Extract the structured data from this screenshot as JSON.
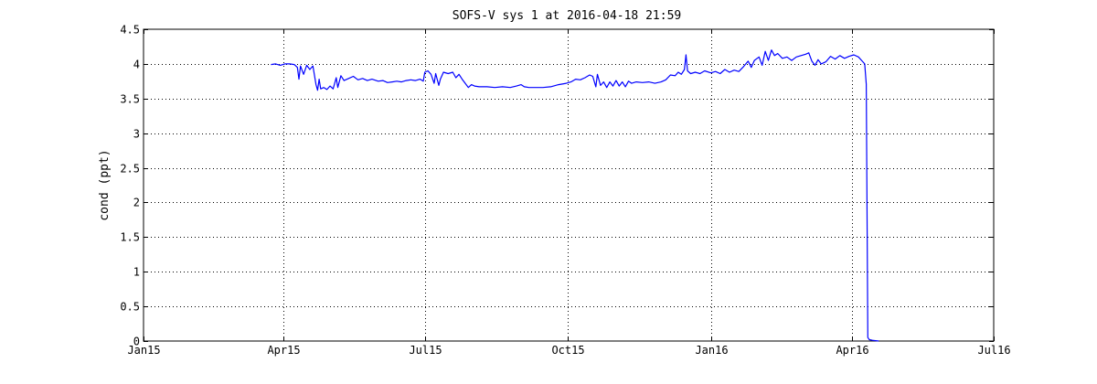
{
  "chart_data": {
    "type": "line",
    "title": "SOFS-V sys 1 at 2016-04-18 21:59",
    "xlabel": "",
    "ylabel": "cond (ppt)",
    "xlim": [
      "2015-01-01",
      "2016-07-01"
    ],
    "ylim": [
      0,
      4.5
    ],
    "x_ticks": [
      {
        "date": "2015-01-01",
        "label": "Jan15"
      },
      {
        "date": "2015-04-01",
        "label": "Apr15"
      },
      {
        "date": "2015-07-01",
        "label": "Jul15"
      },
      {
        "date": "2015-10-01",
        "label": "Oct15"
      },
      {
        "date": "2016-01-01",
        "label": "Jan16"
      },
      {
        "date": "2016-04-01",
        "label": "Apr16"
      },
      {
        "date": "2016-07-01",
        "label": "Jul16"
      }
    ],
    "y_ticks": [
      {
        "value": 0,
        "label": "0"
      },
      {
        "value": 0.5,
        "label": "0.5"
      },
      {
        "value": 1,
        "label": "1"
      },
      {
        "value": 1.5,
        "label": "1.5"
      },
      {
        "value": 2,
        "label": "2"
      },
      {
        "value": 2.5,
        "label": "2.5"
      },
      {
        "value": 3,
        "label": "3"
      },
      {
        "value": 3.5,
        "label": "3.5"
      },
      {
        "value": 4,
        "label": "4"
      },
      {
        "value": 4.5,
        "label": "4.5"
      }
    ],
    "grid": true,
    "grid_style": "dotted",
    "legend": "none",
    "series": [
      {
        "color": "#0000ff",
        "points": [
          [
            "2015-03-24",
            3.99
          ],
          [
            "2015-03-27",
            4.0
          ],
          [
            "2015-03-30",
            3.98
          ],
          [
            "2015-04-02",
            4.0
          ],
          [
            "2015-04-05",
            4.0
          ],
          [
            "2015-04-08",
            3.99
          ],
          [
            "2015-04-10",
            3.95
          ],
          [
            "2015-04-11",
            3.78
          ],
          [
            "2015-04-12",
            3.97
          ],
          [
            "2015-04-14",
            3.85
          ],
          [
            "2015-04-16",
            3.98
          ],
          [
            "2015-04-18",
            3.92
          ],
          [
            "2015-04-20",
            3.97
          ],
          [
            "2015-04-22",
            3.7
          ],
          [
            "2015-04-23",
            3.62
          ],
          [
            "2015-04-24",
            3.78
          ],
          [
            "2015-04-25",
            3.64
          ],
          [
            "2015-04-27",
            3.66
          ],
          [
            "2015-04-29",
            3.63
          ],
          [
            "2015-05-01",
            3.68
          ],
          [
            "2015-05-03",
            3.64
          ],
          [
            "2015-05-05",
            3.8
          ],
          [
            "2015-05-06",
            3.66
          ],
          [
            "2015-05-08",
            3.83
          ],
          [
            "2015-05-10",
            3.76
          ],
          [
            "2015-05-13",
            3.79
          ],
          [
            "2015-05-16",
            3.82
          ],
          [
            "2015-05-19",
            3.77
          ],
          [
            "2015-05-22",
            3.79
          ],
          [
            "2015-05-25",
            3.76
          ],
          [
            "2015-05-28",
            3.78
          ],
          [
            "2015-06-01",
            3.75
          ],
          [
            "2015-06-04",
            3.76
          ],
          [
            "2015-06-07",
            3.73
          ],
          [
            "2015-06-10",
            3.74
          ],
          [
            "2015-06-13",
            3.75
          ],
          [
            "2015-06-16",
            3.74
          ],
          [
            "2015-06-19",
            3.76
          ],
          [
            "2015-06-22",
            3.77
          ],
          [
            "2015-06-25",
            3.76
          ],
          [
            "2015-06-28",
            3.78
          ],
          [
            "2015-06-30",
            3.75
          ],
          [
            "2015-07-01",
            3.88
          ],
          [
            "2015-07-03",
            3.9
          ],
          [
            "2015-07-05",
            3.85
          ],
          [
            "2015-07-07",
            3.72
          ],
          [
            "2015-07-08",
            3.86
          ],
          [
            "2015-07-10",
            3.69
          ],
          [
            "2015-07-11",
            3.78
          ],
          [
            "2015-07-13",
            3.88
          ],
          [
            "2015-07-16",
            3.86
          ],
          [
            "2015-07-19",
            3.88
          ],
          [
            "2015-07-21",
            3.8
          ],
          [
            "2015-07-23",
            3.85
          ],
          [
            "2015-07-25",
            3.78
          ],
          [
            "2015-07-27",
            3.72
          ],
          [
            "2015-07-29",
            3.66
          ],
          [
            "2015-07-31",
            3.7
          ],
          [
            "2015-08-02",
            3.68
          ],
          [
            "2015-08-05",
            3.67
          ],
          [
            "2015-08-10",
            3.67
          ],
          [
            "2015-08-15",
            3.66
          ],
          [
            "2015-08-20",
            3.67
          ],
          [
            "2015-08-25",
            3.66
          ],
          [
            "2015-08-29",
            3.68
          ],
          [
            "2015-09-01",
            3.7
          ],
          [
            "2015-09-03",
            3.67
          ],
          [
            "2015-09-06",
            3.66
          ],
          [
            "2015-09-10",
            3.66
          ],
          [
            "2015-09-15",
            3.66
          ],
          [
            "2015-09-20",
            3.67
          ],
          [
            "2015-09-25",
            3.7
          ],
          [
            "2015-09-30",
            3.72
          ],
          [
            "2015-10-03",
            3.74
          ],
          [
            "2015-10-06",
            3.78
          ],
          [
            "2015-10-09",
            3.77
          ],
          [
            "2015-10-12",
            3.8
          ],
          [
            "2015-10-15",
            3.84
          ],
          [
            "2015-10-17",
            3.82
          ],
          [
            "2015-10-19",
            3.67
          ],
          [
            "2015-10-20",
            3.85
          ],
          [
            "2015-10-22",
            3.69
          ],
          [
            "2015-10-24",
            3.74
          ],
          [
            "2015-10-26",
            3.66
          ],
          [
            "2015-10-28",
            3.74
          ],
          [
            "2015-10-30",
            3.68
          ],
          [
            "2015-11-01",
            3.76
          ],
          [
            "2015-11-03",
            3.68
          ],
          [
            "2015-11-05",
            3.74
          ],
          [
            "2015-11-07",
            3.67
          ],
          [
            "2015-11-09",
            3.75
          ],
          [
            "2015-11-11",
            3.72
          ],
          [
            "2015-11-14",
            3.74
          ],
          [
            "2015-11-18",
            3.73
          ],
          [
            "2015-11-22",
            3.74
          ],
          [
            "2015-11-26",
            3.72
          ],
          [
            "2015-11-30",
            3.74
          ],
          [
            "2015-12-03",
            3.77
          ],
          [
            "2015-12-06",
            3.84
          ],
          [
            "2015-12-09",
            3.83
          ],
          [
            "2015-12-11",
            3.88
          ],
          [
            "2015-12-13",
            3.85
          ],
          [
            "2015-12-15",
            3.92
          ],
          [
            "2015-12-16",
            4.13
          ],
          [
            "2015-12-17",
            3.9
          ],
          [
            "2015-12-19",
            3.86
          ],
          [
            "2015-12-22",
            3.88
          ],
          [
            "2015-12-25",
            3.86
          ],
          [
            "2015-12-28",
            3.9
          ],
          [
            "2016-01-01",
            3.87
          ],
          [
            "2016-01-04",
            3.89
          ],
          [
            "2016-01-07",
            3.86
          ],
          [
            "2016-01-10",
            3.92
          ],
          [
            "2016-01-13",
            3.88
          ],
          [
            "2016-01-16",
            3.91
          ],
          [
            "2016-01-19",
            3.89
          ],
          [
            "2016-01-22",
            3.96
          ],
          [
            "2016-01-25",
            4.04
          ],
          [
            "2016-01-27",
            3.95
          ],
          [
            "2016-01-29",
            4.05
          ],
          [
            "2016-02-01",
            4.1
          ],
          [
            "2016-02-03",
            3.98
          ],
          [
            "2016-02-05",
            4.18
          ],
          [
            "2016-02-07",
            4.05
          ],
          [
            "2016-02-09",
            4.2
          ],
          [
            "2016-02-11",
            4.12
          ],
          [
            "2016-02-13",
            4.15
          ],
          [
            "2016-02-16",
            4.08
          ],
          [
            "2016-02-19",
            4.1
          ],
          [
            "2016-02-22",
            4.05
          ],
          [
            "2016-02-25",
            4.1
          ],
          [
            "2016-02-28",
            4.12
          ],
          [
            "2016-03-02",
            4.14
          ],
          [
            "2016-03-04",
            4.16
          ],
          [
            "2016-03-06",
            4.04
          ],
          [
            "2016-03-08",
            3.98
          ],
          [
            "2016-03-10",
            4.06
          ],
          [
            "2016-03-12",
            4.0
          ],
          [
            "2016-03-15",
            4.03
          ],
          [
            "2016-03-18",
            4.11
          ],
          [
            "2016-03-21",
            4.07
          ],
          [
            "2016-03-24",
            4.12
          ],
          [
            "2016-03-27",
            4.08
          ],
          [
            "2016-03-30",
            4.11
          ],
          [
            "2016-04-02",
            4.13
          ],
          [
            "2016-04-05",
            4.1
          ],
          [
            "2016-04-07",
            4.05
          ],
          [
            "2016-04-09",
            4.0
          ],
          [
            "2016-04-10",
            3.71
          ],
          [
            "2016-04-11",
            0.05
          ],
          [
            "2016-04-12",
            0.02
          ],
          [
            "2016-04-14",
            0.01
          ],
          [
            "2016-04-18",
            0.0
          ]
        ]
      }
    ]
  }
}
